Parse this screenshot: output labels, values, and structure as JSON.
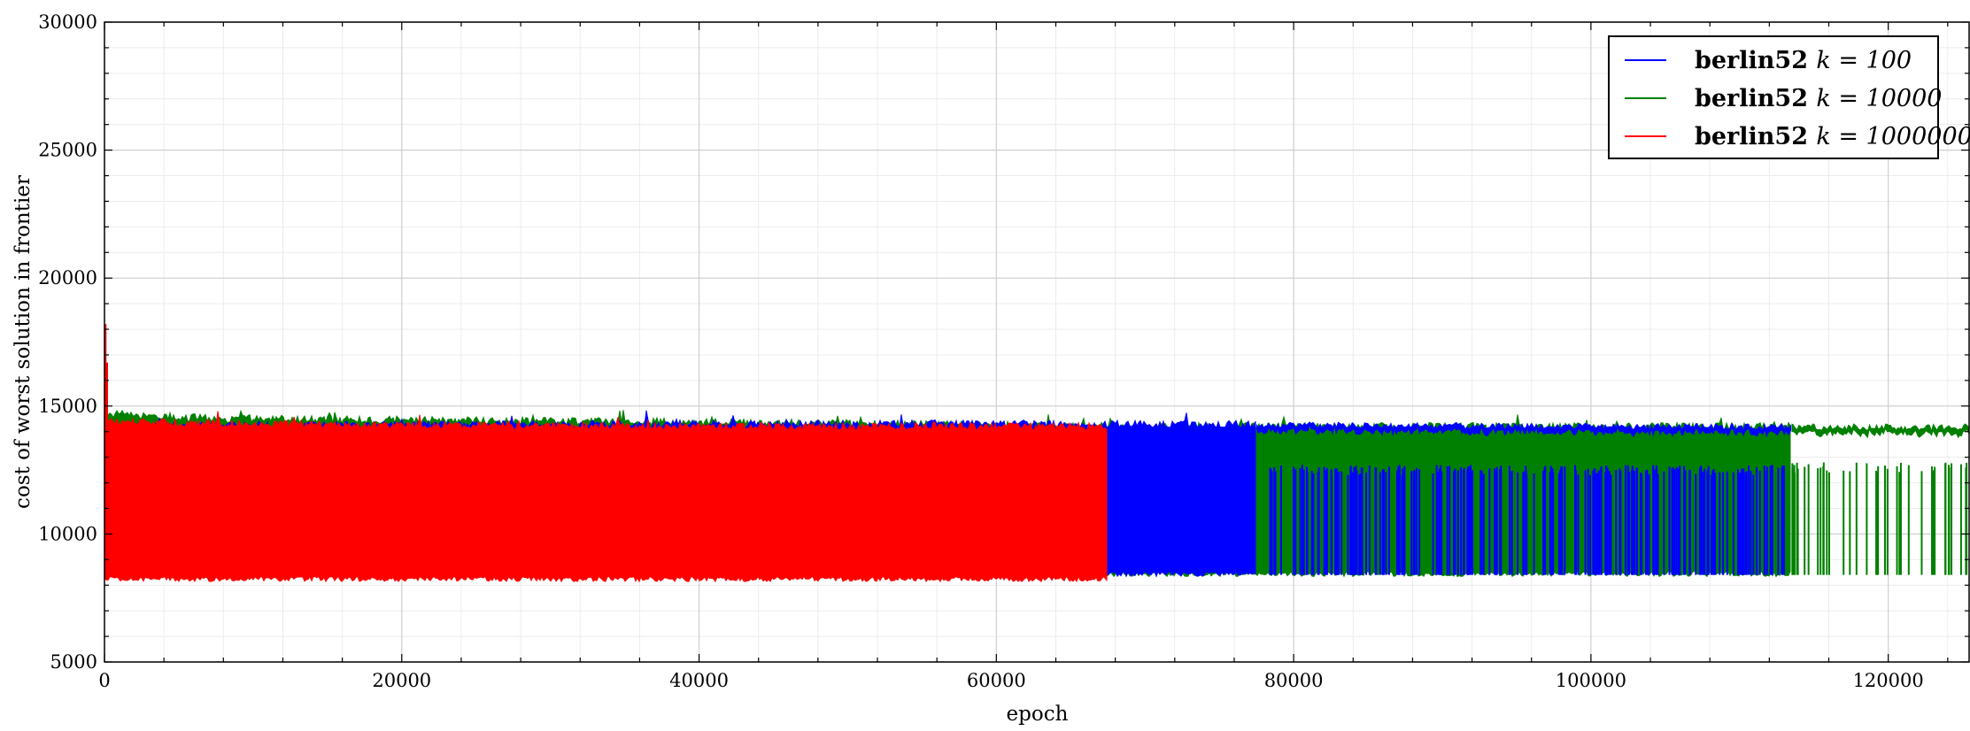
{
  "chart_data": {
    "type": "line",
    "title": "",
    "xlabel": "epoch",
    "ylabel": "cost of worst solution in frontier",
    "xlim": [
      0,
      125500
    ],
    "ylim": [
      5000,
      30000
    ],
    "x_ticks": [
      0,
      20000,
      40000,
      60000,
      80000,
      100000,
      120000
    ],
    "y_ticks": [
      5000,
      10000,
      15000,
      20000,
      25000,
      30000
    ],
    "x_tick_labels": [
      "0",
      "20000",
      "40000",
      "60000",
      "80000",
      "100000",
      "120000"
    ],
    "y_tick_labels": [
      "5000",
      "10000",
      "15000",
      "20000",
      "25000",
      "30000"
    ],
    "grid": true,
    "minor_grid": true,
    "legend": {
      "placement": "top-right"
    },
    "series": [
      {
        "name_bold": "berlin52",
        "name_math": "k = 100",
        "color": "#0000ff",
        "x_end": 113500,
        "upper_band": [
          [
            0,
            14200
          ],
          [
            36000,
            14300
          ],
          [
            70000,
            14300
          ],
          [
            113500,
            14200
          ]
        ],
        "lower_floor": 8400,
        "dense_until": 77500,
        "sparse_spikes": {
          "count": 120,
          "top": 12700,
          "bottom": 8400
        }
      },
      {
        "name_bold": "berlin52",
        "name_math": "k = 10000",
        "color": "#008000",
        "x_end": 125500,
        "upper_band": [
          [
            0,
            14700
          ],
          [
            8000,
            14500
          ],
          [
            36000,
            14400
          ],
          [
            70000,
            14200
          ],
          [
            125500,
            14200
          ]
        ],
        "lower_floor": 8400,
        "dense_until": 113500,
        "sparse_spikes": {
          "count": 40,
          "top": 12800,
          "bottom": 8400
        }
      },
      {
        "name_bold": "berlin52",
        "name_math": "k = 1000000",
        "color": "#ff0000",
        "x_end": 67500,
        "upper_band": [
          [
            0,
            14400
          ],
          [
            8000,
            14300
          ],
          [
            36000,
            14200
          ],
          [
            67500,
            14200
          ]
        ],
        "lower_floor": 8200,
        "initial_peak": 18200,
        "dense_until": 67500,
        "sparse_spikes": {
          "count": 0,
          "top": 0,
          "bottom": 0
        }
      }
    ]
  }
}
